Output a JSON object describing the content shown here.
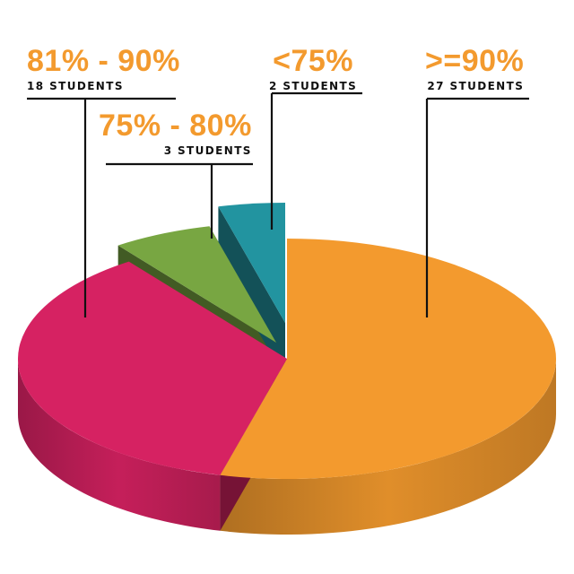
{
  "chart_data": {
    "type": "pie",
    "title": "",
    "slices": [
      {
        "label": ">=90%",
        "value": 27,
        "count_text": "27 STUDENTS",
        "color": "#f39a2e"
      },
      {
        "label": "81% - 90%",
        "value": 18,
        "count_text": "18 STUDENTS",
        "color": "#d62262"
      },
      {
        "label": "75% - 80%",
        "value": 3,
        "count_text": "3 STUDENTS",
        "color": "#78a642"
      },
      {
        "label": "<75%",
        "value": 2,
        "count_text": "2 STUDENTS",
        "color": "#2294a0"
      }
    ],
    "label_color": "#f39a2e",
    "three_d": true,
    "exploded_slices": [
      "75% - 80%",
      "<75%"
    ],
    "legend": "none"
  }
}
